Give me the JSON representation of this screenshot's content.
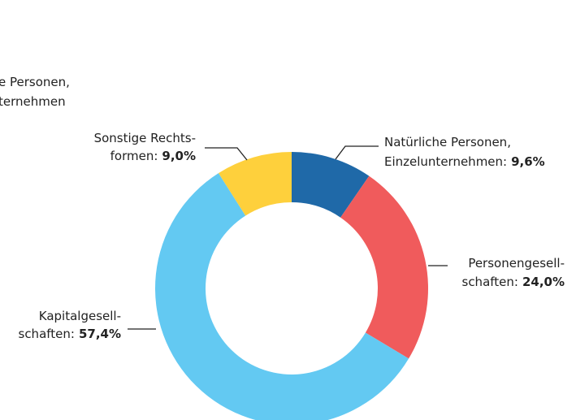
{
  "chart_data": {
    "type": "donut",
    "partial_text": [
      "e Personen,",
      "ternehmen"
    ],
    "categories": [
      [
        "Natürliche Personen,",
        "Einzelunternehmen:"
      ],
      [
        "Personengesell-",
        "schaften:"
      ],
      [
        "Kapitalgesell-",
        "schaften:"
      ],
      [
        "Sonstige Rechts-",
        "formen:"
      ]
    ],
    "values": [
      9.6,
      24.0,
      57.4,
      9.0
    ],
    "value_labels": [
      "9,6%",
      "24,0%",
      "57,4%",
      "9,0%"
    ],
    "colors": [
      "#1f69a8",
      "#f05b5c",
      "#63c9f2",
      "#fed03c"
    ]
  }
}
